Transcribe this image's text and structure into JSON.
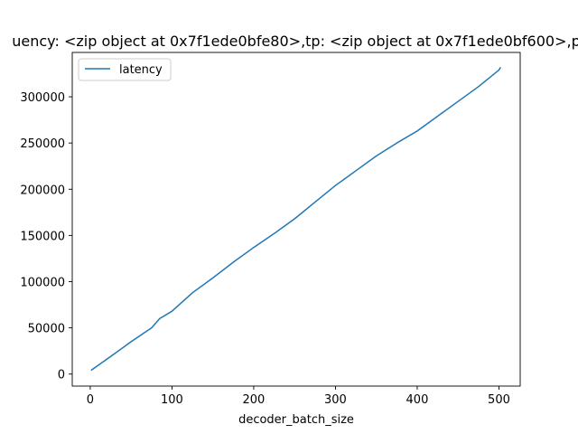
{
  "chart_data": {
    "type": "line",
    "title": "uency: <zip object at 0x7f1ede0bfe80>,tp: <zip object at 0x7f1ede0bf600>,p",
    "xlabel": "decoder_batch_size",
    "ylabel": "",
    "xlim": [
      -22,
      526
    ],
    "ylim": [
      -13000,
      348000
    ],
    "xticks": [
      0,
      100,
      200,
      300,
      400,
      500
    ],
    "xtick_labels": [
      "0",
      "100",
      "200",
      "300",
      "400",
      "500"
    ],
    "yticks": [
      0,
      50000,
      100000,
      150000,
      200000,
      250000,
      300000
    ],
    "ytick_labels": [
      "0",
      "50000",
      "100000",
      "150000",
      "200000",
      "250000",
      "300000"
    ],
    "grid": false,
    "legend_position": "upper-left",
    "series": [
      {
        "name": "latency",
        "color": "#1f77b4",
        "x": [
          1,
          25,
          50,
          75,
          85,
          100,
          125,
          150,
          175,
          200,
          225,
          250,
          275,
          300,
          325,
          350,
          375,
          400,
          425,
          450,
          475,
          500,
          502
        ],
        "y": [
          4000,
          19000,
          35000,
          50000,
          60000,
          68000,
          88000,
          104000,
          121000,
          137000,
          152000,
          168000,
          186000,
          204000,
          220000,
          236000,
          250000,
          263000,
          279000,
          295000,
          311000,
          329000,
          332000
        ]
      }
    ]
  }
}
